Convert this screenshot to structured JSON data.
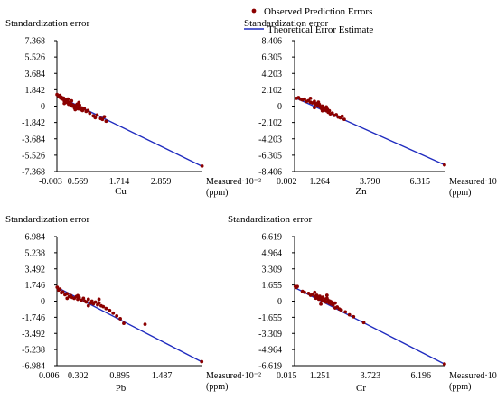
{
  "legend": {
    "observed": "Observed Prediction Errors",
    "theoretical": "Theoretical Error Estimate",
    "observed_color": "#8b0000",
    "theoretical_color": "#1f2bbf"
  },
  "chart_data": [
    {
      "type": "scatter",
      "element": "Cu",
      "ylabel": "Standardization error",
      "xlabel": "Measured·10⁻²",
      "xunit": "(ppm)",
      "xlim": [
        -0.003,
        4.0
      ],
      "ylim": [
        -7.368,
        7.368
      ],
      "x_ticks": [
        "-0.003",
        "0.569",
        "1.714",
        "2.859"
      ],
      "y_ticks": [
        "7.368",
        "5.526",
        "3.684",
        "1.842",
        "0",
        "-1.842",
        "-3.684",
        "-5.526",
        "-7.368"
      ],
      "line": [
        [
          -0.003,
          1.2
        ],
        [
          4.0,
          -6.8
        ]
      ],
      "points": [
        [
          0.0,
          1.3
        ],
        [
          0.05,
          1.1
        ],
        [
          0.08,
          1.2
        ],
        [
          0.1,
          0.9
        ],
        [
          0.12,
          1.0
        ],
        [
          0.15,
          0.8
        ],
        [
          0.18,
          0.9
        ],
        [
          0.2,
          0.6
        ],
        [
          0.22,
          0.5
        ],
        [
          0.25,
          0.7
        ],
        [
          0.28,
          0.4
        ],
        [
          0.3,
          0.5
        ],
        [
          0.32,
          0.2
        ],
        [
          0.35,
          0.3
        ],
        [
          0.38,
          0.1
        ],
        [
          0.4,
          0.2
        ],
        [
          0.42,
          0.0
        ],
        [
          0.45,
          0.1
        ],
        [
          0.48,
          -0.2
        ],
        [
          0.5,
          0.0
        ],
        [
          0.52,
          -0.1
        ],
        [
          0.55,
          0.2
        ],
        [
          0.58,
          -0.3
        ],
        [
          0.6,
          -0.1
        ],
        [
          0.62,
          0.1
        ],
        [
          0.65,
          -0.4
        ],
        [
          0.68,
          -0.2
        ],
        [
          0.7,
          -0.5
        ],
        [
          0.75,
          -0.3
        ],
        [
          0.8,
          -0.6
        ],
        [
          0.85,
          -0.5
        ],
        [
          0.9,
          -0.8
        ],
        [
          1.0,
          -1.1
        ],
        [
          1.05,
          -1.3
        ],
        [
          1.1,
          -1.0
        ],
        [
          1.2,
          -1.4
        ],
        [
          1.25,
          -1.5
        ],
        [
          1.3,
          -1.2
        ],
        [
          1.35,
          -1.7
        ],
        [
          0.2,
          0.3
        ],
        [
          0.3,
          0.8
        ],
        [
          0.4,
          0.6
        ],
        [
          0.5,
          -0.4
        ],
        [
          0.6,
          0.4
        ],
        [
          3.99,
          -6.75
        ]
      ]
    },
    {
      "type": "scatter",
      "element": "Zn",
      "ylabel": "Standardization error",
      "xlabel": "Measured·10⁻²",
      "xunit": "(ppm)",
      "xlim": [
        0.002,
        7.6
      ],
      "ylim": [
        -8.406,
        8.406
      ],
      "x_ticks": [
        "0.002",
        "1.264",
        "3.790",
        "6.315"
      ],
      "y_ticks": [
        "8.406",
        "6.305",
        "4.203",
        "2.102",
        "0",
        "-2.102",
        "-4.203",
        "-6.305",
        "-8.406"
      ],
      "line": [
        [
          0.002,
          1.1
        ],
        [
          7.6,
          -7.6
        ]
      ],
      "points": [
        [
          0.1,
          1.0
        ],
        [
          0.2,
          1.1
        ],
        [
          0.3,
          0.9
        ],
        [
          0.4,
          0.8
        ],
        [
          0.5,
          0.9
        ],
        [
          0.6,
          0.6
        ],
        [
          0.7,
          0.7
        ],
        [
          0.8,
          0.5
        ],
        [
          0.9,
          0.4
        ],
        [
          1.0,
          0.6
        ],
        [
          1.05,
          0.2
        ],
        [
          1.1,
          0.3
        ],
        [
          1.15,
          0.1
        ],
        [
          1.2,
          0.0
        ],
        [
          1.25,
          0.2
        ],
        [
          1.3,
          -0.1
        ],
        [
          1.35,
          -0.3
        ],
        [
          1.4,
          0.0
        ],
        [
          1.45,
          -0.2
        ],
        [
          1.5,
          -0.5
        ],
        [
          1.55,
          -0.3
        ],
        [
          1.6,
          -0.6
        ],
        [
          1.65,
          -0.4
        ],
        [
          1.7,
          -0.8
        ],
        [
          1.75,
          -0.6
        ],
        [
          1.8,
          -1.0
        ],
        [
          1.9,
          -0.9
        ],
        [
          2.0,
          -1.2
        ],
        [
          2.1,
          -1.1
        ],
        [
          2.2,
          -1.4
        ],
        [
          2.3,
          -1.5
        ],
        [
          2.4,
          -1.3
        ],
        [
          2.5,
          -1.7
        ],
        [
          0.8,
          1.0
        ],
        [
          1.0,
          -0.2
        ],
        [
          1.2,
          0.5
        ],
        [
          1.4,
          -0.6
        ],
        [
          1.6,
          -0.1
        ],
        [
          7.55,
          -7.55
        ]
      ]
    },
    {
      "type": "scatter",
      "element": "Pb",
      "ylabel": "Standardization error",
      "xlabel": "Measured·10⁻²",
      "xunit": "(ppm)",
      "xlim": [
        0.006,
        2.06
      ],
      "ylim": [
        -6.984,
        6.984
      ],
      "x_ticks": [
        "0.006",
        "0.302",
        "0.895",
        "1.487"
      ],
      "y_ticks": [
        "6.984",
        "5.238",
        "3.492",
        "1.746",
        "0",
        "-1.746",
        "-3.492",
        "-5.238",
        "-6.984"
      ],
      "line": [
        [
          0.006,
          1.5
        ],
        [
          2.06,
          -6.6
        ]
      ],
      "points": [
        [
          0.01,
          1.5
        ],
        [
          0.03,
          1.2
        ],
        [
          0.05,
          1.3
        ],
        [
          0.07,
          0.9
        ],
        [
          0.09,
          1.0
        ],
        [
          0.12,
          0.7
        ],
        [
          0.15,
          0.8
        ],
        [
          0.18,
          0.5
        ],
        [
          0.2,
          0.6
        ],
        [
          0.22,
          0.4
        ],
        [
          0.25,
          0.3
        ],
        [
          0.28,
          0.5
        ],
        [
          0.3,
          0.2
        ],
        [
          0.32,
          0.4
        ],
        [
          0.35,
          0.1
        ],
        [
          0.38,
          0.3
        ],
        [
          0.4,
          0.0
        ],
        [
          0.42,
          -0.1
        ],
        [
          0.45,
          0.2
        ],
        [
          0.48,
          -0.2
        ],
        [
          0.5,
          0.0
        ],
        [
          0.52,
          -0.3
        ],
        [
          0.55,
          -0.1
        ],
        [
          0.58,
          -0.4
        ],
        [
          0.6,
          -0.2
        ],
        [
          0.63,
          -0.5
        ],
        [
          0.66,
          -0.6
        ],
        [
          0.7,
          -0.8
        ],
        [
          0.75,
          -1.0
        ],
        [
          0.8,
          -1.3
        ],
        [
          0.85,
          -1.6
        ],
        [
          0.9,
          -1.9
        ],
        [
          0.95,
          -2.4
        ],
        [
          0.15,
          0.3
        ],
        [
          0.3,
          0.6
        ],
        [
          0.45,
          -0.5
        ],
        [
          0.6,
          0.2
        ],
        [
          1.25,
          -2.5
        ],
        [
          2.05,
          -6.55
        ]
      ]
    },
    {
      "type": "scatter",
      "element": "Cr",
      "ylabel": "Standardization error",
      "xlabel": "Measured·10⁻²",
      "xunit": "(ppm)",
      "xlim": [
        0.015,
        7.4
      ],
      "ylim": [
        -6.619,
        6.619
      ],
      "x_ticks": [
        "0.015",
        "1.251",
        "3.723",
        "6.196"
      ],
      "y_ticks": [
        "6.619",
        "4.964",
        "3.309",
        "1.655",
        "0",
        "-1.655",
        "-3.309",
        "-4.964",
        "-6.619"
      ],
      "line": [
        [
          0.015,
          1.4
        ],
        [
          7.4,
          -6.5
        ]
      ],
      "points": [
        [
          0.05,
          1.5
        ],
        [
          0.1,
          1.4
        ],
        [
          0.15,
          1.5
        ],
        [
          0.4,
          1.0
        ],
        [
          0.5,
          0.9
        ],
        [
          0.7,
          0.8
        ],
        [
          0.8,
          0.6
        ],
        [
          0.9,
          0.7
        ],
        [
          1.0,
          0.5
        ],
        [
          1.05,
          0.3
        ],
        [
          1.1,
          0.6
        ],
        [
          1.15,
          0.4
        ],
        [
          1.2,
          0.2
        ],
        [
          1.25,
          0.5
        ],
        [
          1.3,
          0.3
        ],
        [
          1.35,
          0.1
        ],
        [
          1.4,
          0.4
        ],
        [
          1.45,
          0.0
        ],
        [
          1.5,
          0.2
        ],
        [
          1.55,
          -0.1
        ],
        [
          1.6,
          0.3
        ],
        [
          1.65,
          0.1
        ],
        [
          1.7,
          -0.2
        ],
        [
          1.75,
          0.0
        ],
        [
          1.8,
          -0.3
        ],
        [
          1.85,
          -0.1
        ],
        [
          1.9,
          -0.4
        ],
        [
          2.0,
          -0.2
        ],
        [
          2.1,
          -0.6
        ],
        [
          2.2,
          -0.8
        ],
        [
          2.3,
          -0.9
        ],
        [
          2.5,
          -1.1
        ],
        [
          2.7,
          -1.4
        ],
        [
          2.9,
          -1.6
        ],
        [
          1.0,
          0.9
        ],
        [
          1.3,
          -0.3
        ],
        [
          1.6,
          0.6
        ],
        [
          2.0,
          -0.7
        ],
        [
          3.4,
          -2.2
        ],
        [
          7.35,
          -6.45
        ]
      ]
    }
  ]
}
